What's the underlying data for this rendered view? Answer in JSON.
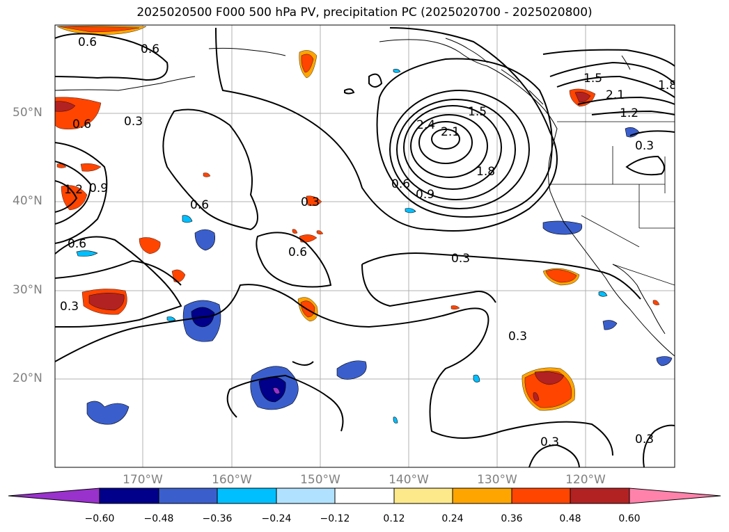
{
  "title": "2025020500 F000 500 hPa PV, precipitation PC (2025020700 - 2025020800)",
  "lat_labels": [
    "50°N",
    "40°N",
    "30°N",
    "20°N"
  ],
  "lon_labels": [
    "170°W",
    "160°W",
    "150°W",
    "140°W",
    "130°W",
    "120°W"
  ],
  "contour_labels": [
    "0.6",
    "0.6",
    "0.3",
    "0.6",
    "0.9",
    "1.2",
    "0.6",
    "0.6",
    "0.3",
    "0.6",
    "0.3",
    "2.4",
    "2.1",
    "1.5",
    "1.8",
    "0.6",
    "0.9",
    "1.5",
    "2.1",
    "1.2",
    "1.8",
    "0.3",
    "0.3",
    "0.3",
    "0.3",
    "0.3"
  ],
  "colorbar": {
    "tick_labels": [
      "−0.60",
      "−0.48",
      "−0.36",
      "−0.24",
      "−0.12",
      "0.12",
      "0.24",
      "0.36",
      "0.48",
      "0.60"
    ],
    "colors": [
      "#9932cc",
      "#00008b",
      "#3a5fcd",
      "#00bfff",
      "#b0e2ff",
      "#ffffff",
      "#fde98a",
      "#ffa500",
      "#ff4500",
      "#b22222",
      "#ff82ab"
    ]
  }
}
